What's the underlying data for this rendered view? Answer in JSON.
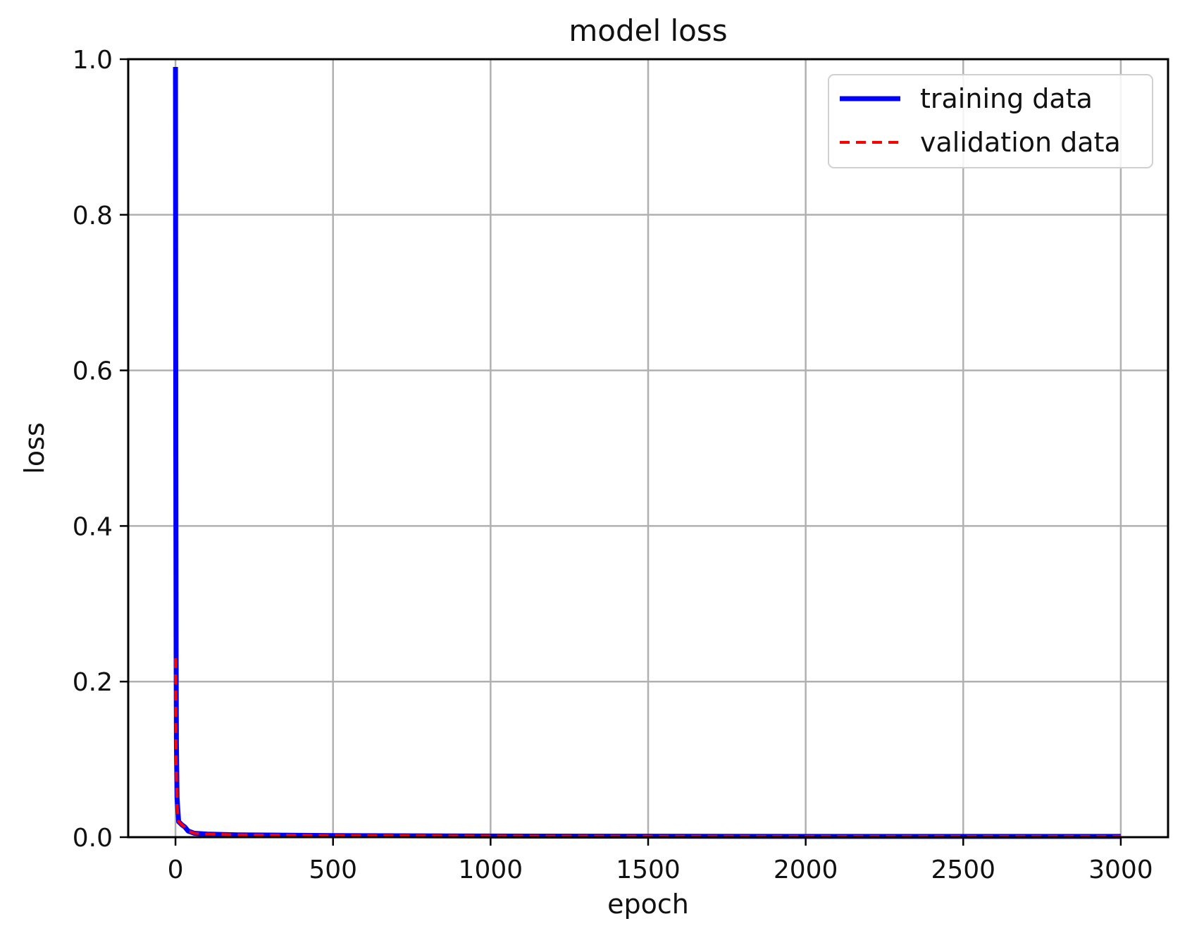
{
  "chart_data": {
    "type": "line",
    "title": "model loss",
    "xlabel": "epoch",
    "ylabel": "loss",
    "xlim": [
      -150,
      3150
    ],
    "ylim": [
      0.0,
      1.0
    ],
    "xticks": [
      0,
      500,
      1000,
      1500,
      2000,
      2500,
      3000
    ],
    "xtick_labels": [
      "0",
      "500",
      "1000",
      "1500",
      "2000",
      "2500",
      "3000"
    ],
    "yticks": [
      0.0,
      0.2,
      0.4,
      0.6,
      0.8,
      1.0
    ],
    "ytick_labels": [
      "0.0",
      "0.2",
      "0.4",
      "0.6",
      "0.8",
      "1.0"
    ],
    "grid": true,
    "legend_position": "top-right",
    "series": [
      {
        "name": "training data",
        "color": "#0000ff",
        "style": "solid",
        "x": [
          0,
          1,
          2,
          3,
          5,
          10,
          20,
          30,
          40,
          60,
          100,
          200,
          500,
          1000,
          1500,
          2000,
          2500,
          3000
        ],
        "y": [
          0.99,
          0.5,
          0.24,
          0.12,
          0.05,
          0.02,
          0.016,
          0.013,
          0.008,
          0.005,
          0.004,
          0.003,
          0.002,
          0.0015,
          0.0012,
          0.001,
          0.001,
          0.001
        ]
      },
      {
        "name": "validation data",
        "color": "#ff0000",
        "style": "dashed",
        "x": [
          0,
          2,
          5,
          10,
          20,
          30,
          40,
          60,
          100,
          200,
          500,
          1000,
          1500,
          2000,
          2500,
          3000
        ],
        "y": [
          0.23,
          0.1,
          0.04,
          0.02,
          0.016,
          0.013,
          0.008,
          0.005,
          0.004,
          0.003,
          0.002,
          0.0015,
          0.0012,
          0.001,
          0.001,
          0.001
        ]
      }
    ]
  }
}
